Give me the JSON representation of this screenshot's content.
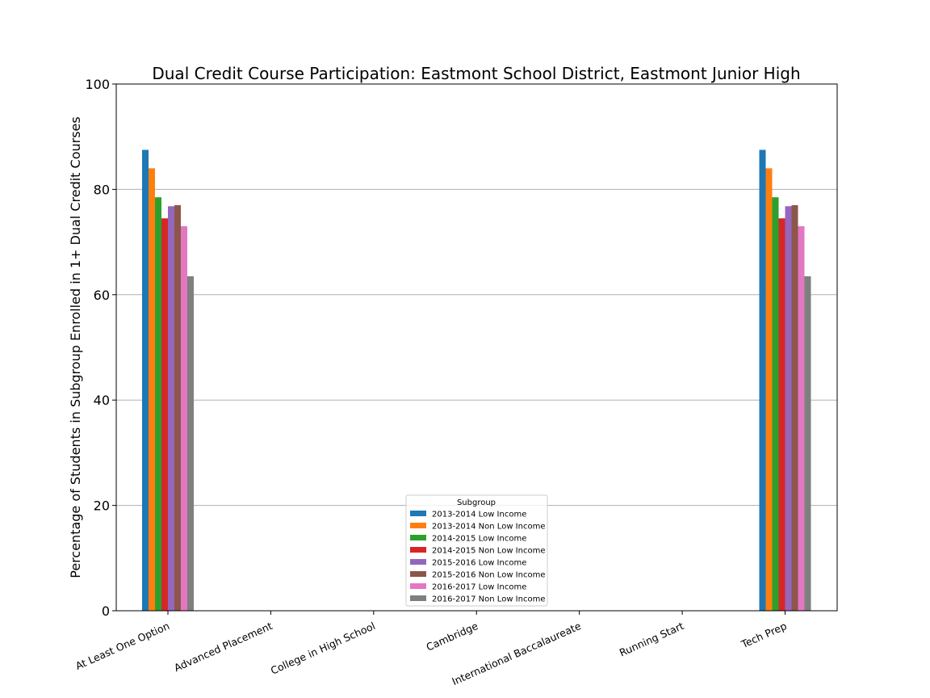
{
  "chart_data": {
    "type": "bar",
    "title": "Dual Credit Course Participation: Eastmont School District, Eastmont Junior High",
    "xlabel": "",
    "ylabel": "Percentage of Students in Subgroup Enrolled in 1+ Dual Credit Courses",
    "ylim": [
      0,
      100
    ],
    "yticks": [
      "0",
      "20",
      "40",
      "60",
      "80",
      "100"
    ],
    "grid": "horizontal",
    "legend_title": "Subgroup",
    "legend_position": "lower-center",
    "categories": [
      "At Least One Option",
      "Advanced Placement",
      "College in High School",
      "Cambridge",
      "International Baccalaureate",
      "Running Start",
      "Tech Prep"
    ],
    "series": [
      {
        "name": "2013-2014 Low Income",
        "color": "#1f77b4",
        "values": [
          87.5,
          0,
          0,
          0,
          0,
          0,
          87.5
        ]
      },
      {
        "name": "2013-2014 Non Low Income",
        "color": "#ff7f0e",
        "values": [
          84.0,
          0,
          0,
          0,
          0,
          0,
          84.0
        ]
      },
      {
        "name": "2014-2015 Low Income",
        "color": "#2ca02c",
        "values": [
          78.5,
          0,
          0,
          0,
          0,
          0,
          78.5
        ]
      },
      {
        "name": "2014-2015 Non Low Income",
        "color": "#d62728",
        "values": [
          74.5,
          0,
          0,
          0,
          0,
          0,
          74.5
        ]
      },
      {
        "name": "2015-2016 Low Income",
        "color": "#9467bd",
        "values": [
          76.8,
          0,
          0,
          0,
          0,
          0,
          76.8
        ]
      },
      {
        "name": "2015-2016 Non Low Income",
        "color": "#8c564b",
        "values": [
          77.0,
          0,
          0,
          0,
          0,
          0,
          77.0
        ]
      },
      {
        "name": "2016-2017 Low Income",
        "color": "#e377c2",
        "values": [
          73.0,
          0,
          0,
          0,
          0,
          0,
          73.0
        ]
      },
      {
        "name": "2016-2017 Non Low Income",
        "color": "#7f7f7f",
        "values": [
          63.5,
          0,
          0,
          0,
          0,
          0,
          63.5
        ]
      }
    ]
  }
}
